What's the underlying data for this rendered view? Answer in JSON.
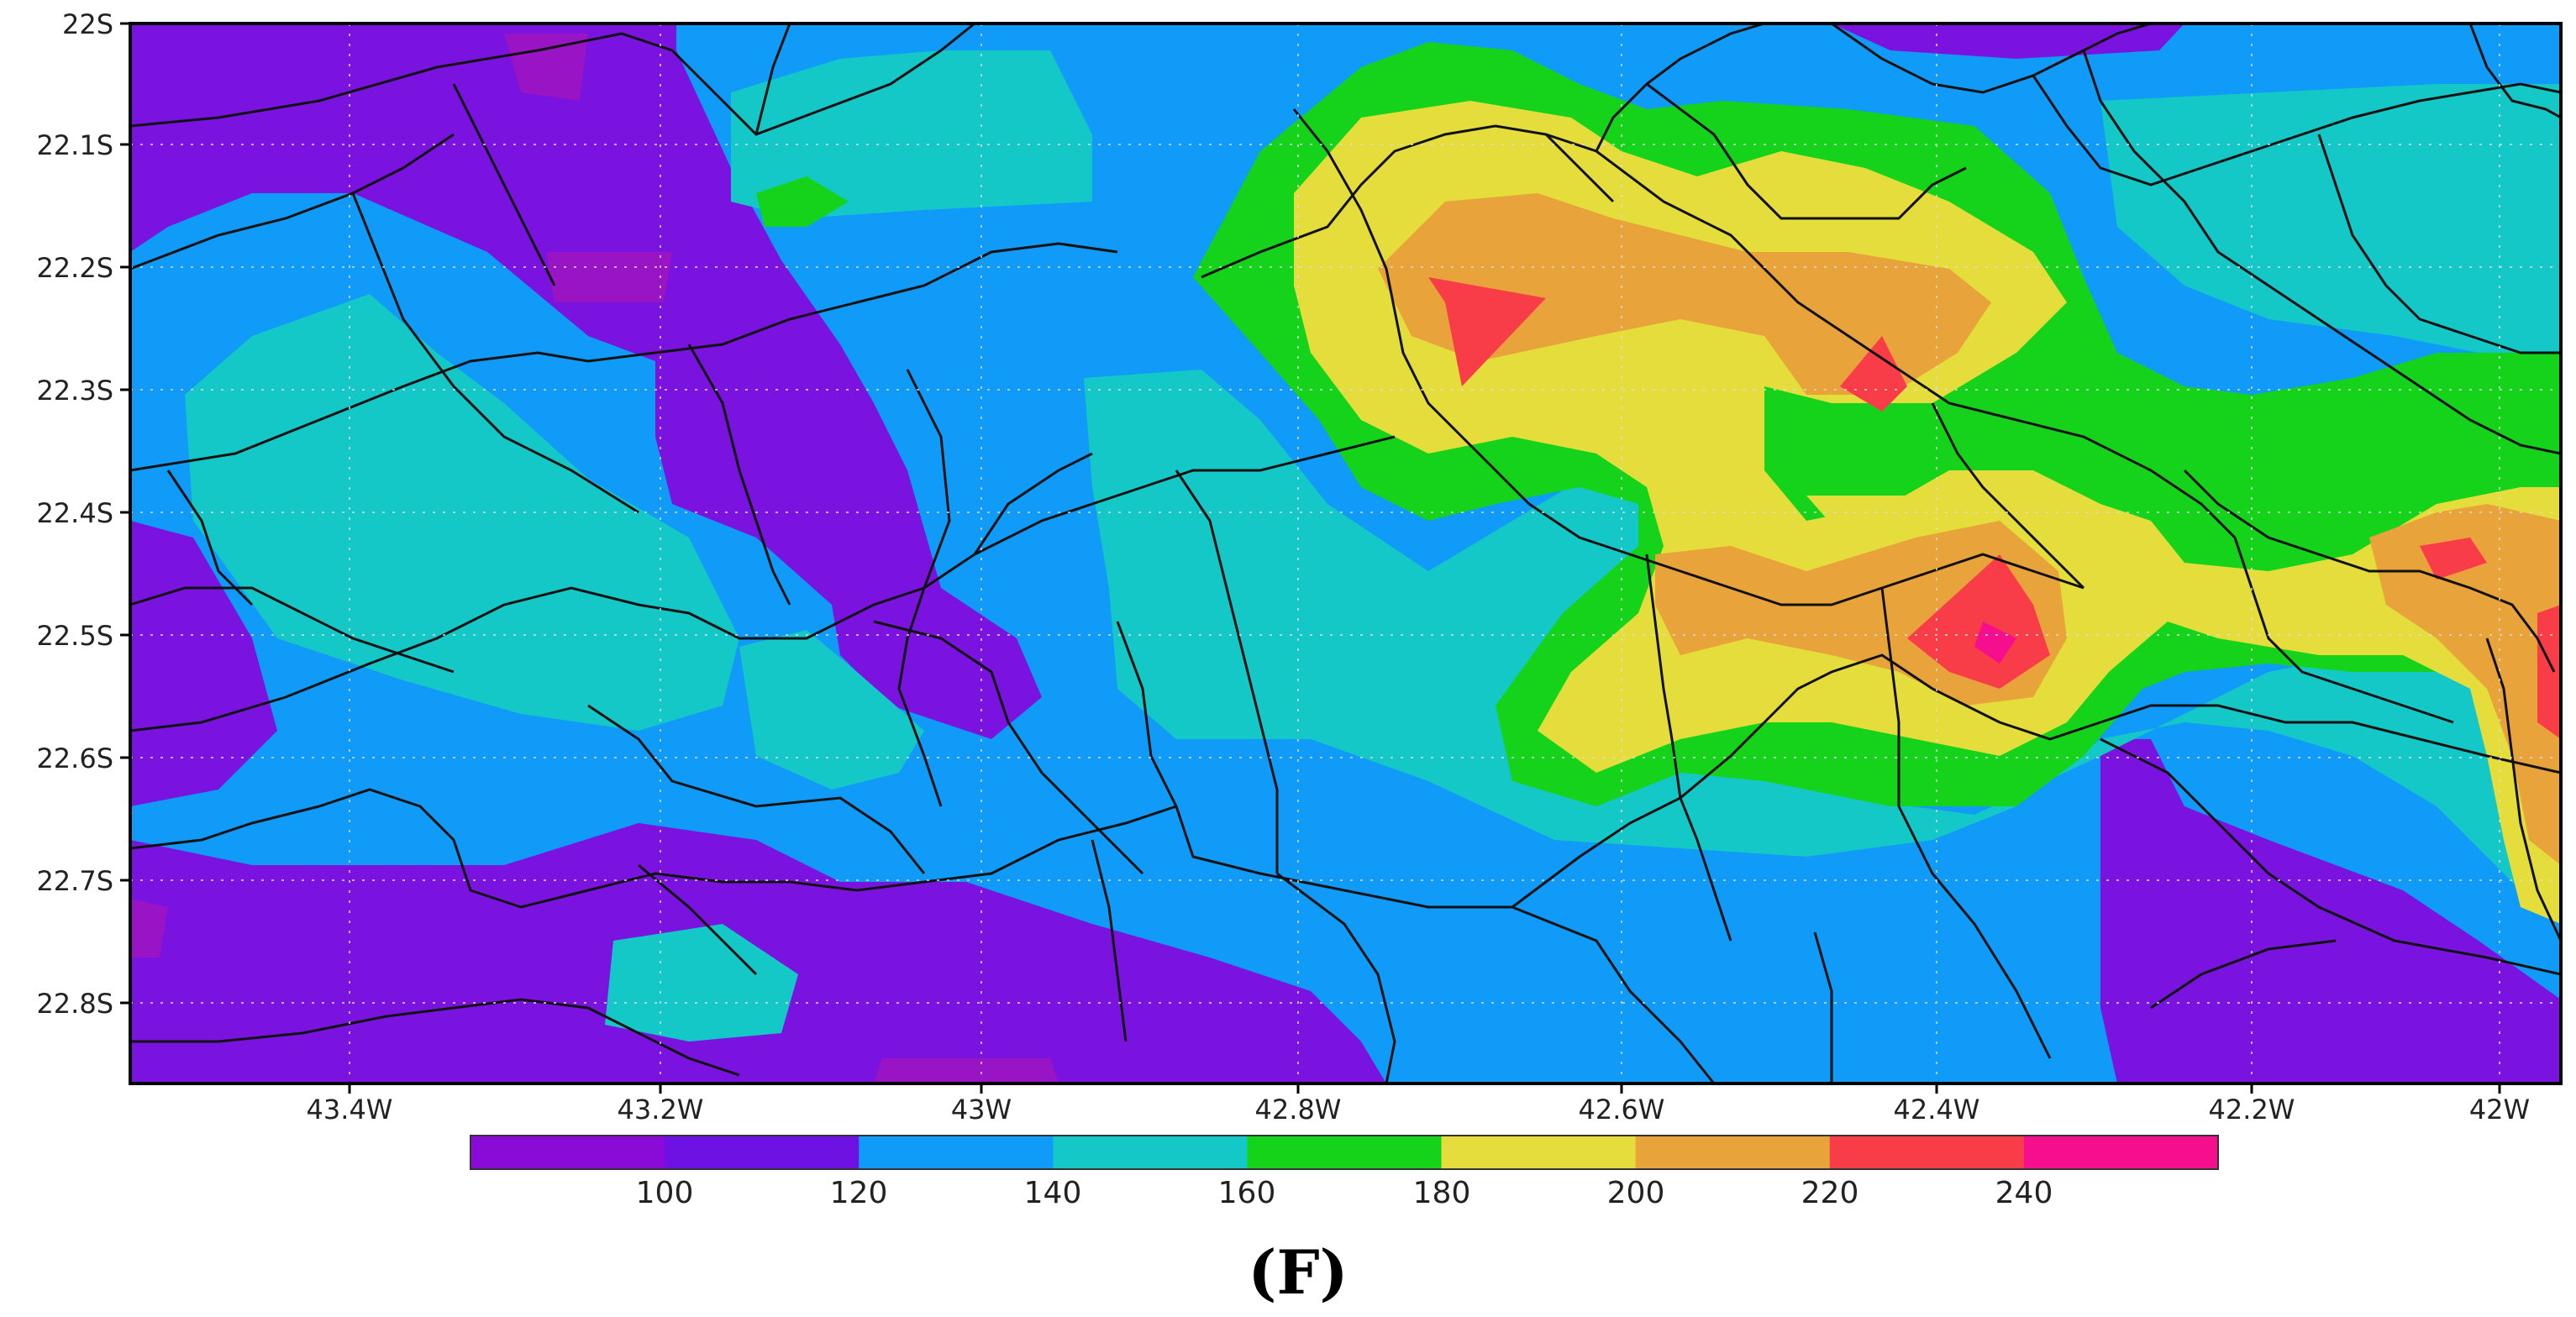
{
  "map": {
    "lat_labels": [
      "22S",
      "22.1S",
      "22.2S",
      "22.3S",
      "22.4S",
      "22.5S",
      "22.6S",
      "22.7S",
      "22.8S"
    ],
    "lon_labels": [
      "43.4W",
      "43.2W",
      "43W",
      "42.8W",
      "42.6W",
      "42.4W",
      "42.2W",
      "42W"
    ],
    "extent": {
      "lon_min": -43.55,
      "lon_max": -41.96,
      "lat_min": -22.86,
      "lat_max": -22.0
    },
    "projection": "lat-lon",
    "grid": true,
    "boundaries": "municipal borders (black lines)"
  },
  "colorbar": {
    "labels": [
      "100",
      "120",
      "140",
      "160",
      "180",
      "200",
      "220",
      "240"
    ],
    "colors": [
      "#8a0ad8",
      "#6e12e4",
      "#0f9bf7",
      "#15c8c8",
      "#14d31a",
      "#e4dd3b",
      "#e8a33b",
      "#f83d49",
      "#f50f8c"
    ]
  },
  "panel_label": "(F)"
}
